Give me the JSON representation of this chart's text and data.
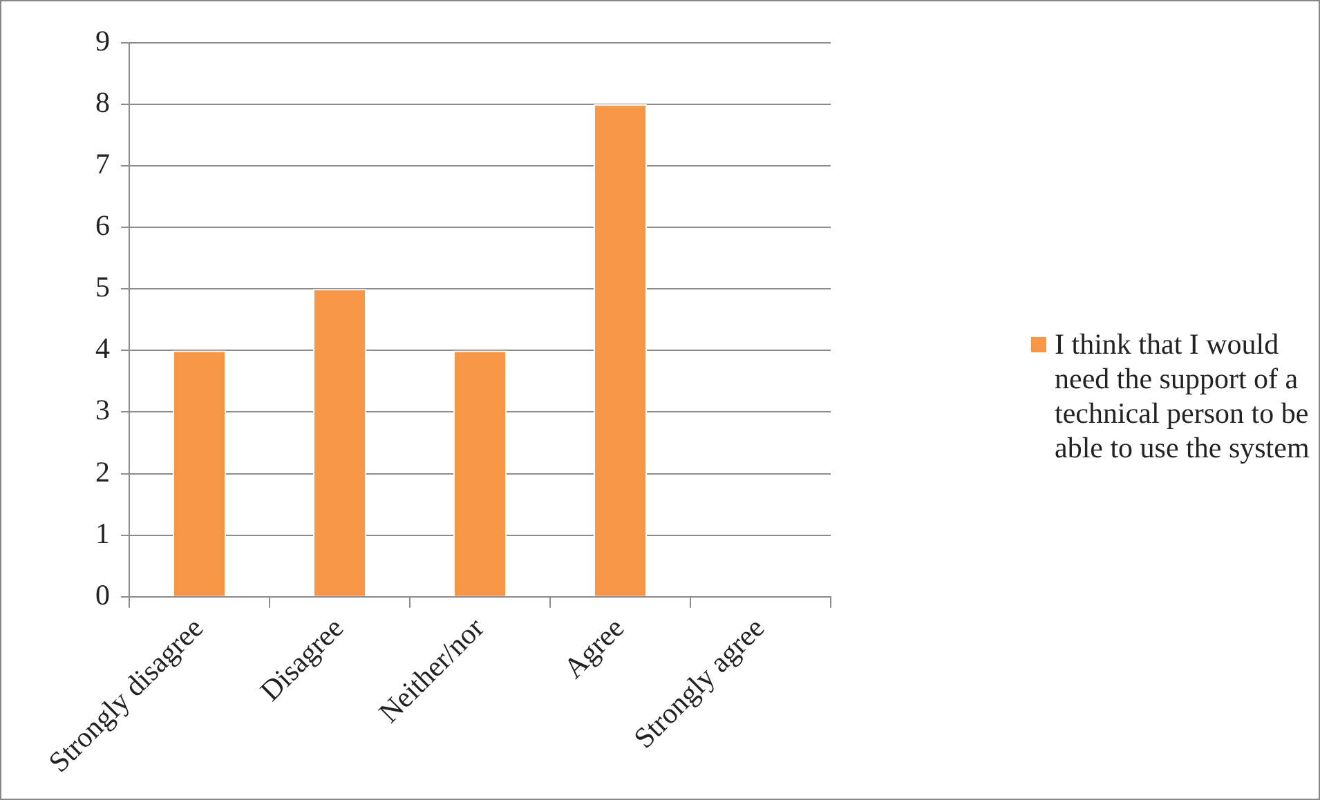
{
  "chart_data": {
    "type": "bar",
    "categories": [
      "Strongly disagree",
      "Disagree",
      "Neither/nor",
      "Agree",
      "Strongly agree"
    ],
    "series": [
      {
        "name": "I think that I would need the support of a technical person to be able to use the system",
        "color": "#f79646",
        "values": [
          4,
          5,
          4,
          8,
          0
        ]
      }
    ],
    "ylim": [
      0,
      9
    ],
    "yticks": [
      0,
      1,
      2,
      3,
      4,
      5,
      6,
      7,
      8,
      9
    ],
    "grid": "y",
    "legend": "right"
  }
}
